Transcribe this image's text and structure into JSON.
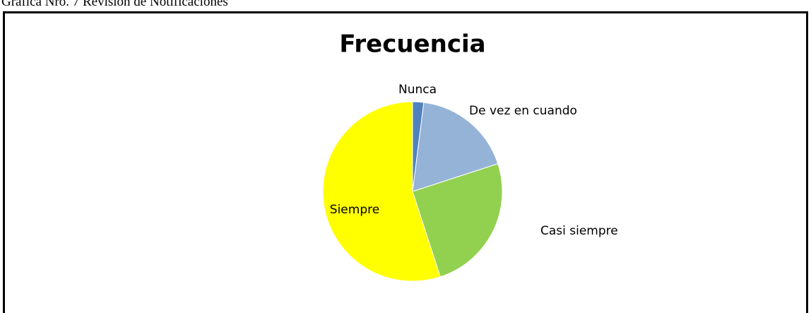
{
  "caption": "Gráfica Nro. 7  Revisión de Notificaciones",
  "chart_data": {
    "type": "pie",
    "title": "Frecuencia",
    "categories": [
      "Nunca",
      "De vez en cuando",
      "Casi siempre",
      "Siempre"
    ],
    "values": [
      2,
      18,
      25,
      55
    ],
    "colors": [
      "#4f81bd",
      "#95b3d7",
      "#92d050",
      "#ffff00"
    ]
  }
}
